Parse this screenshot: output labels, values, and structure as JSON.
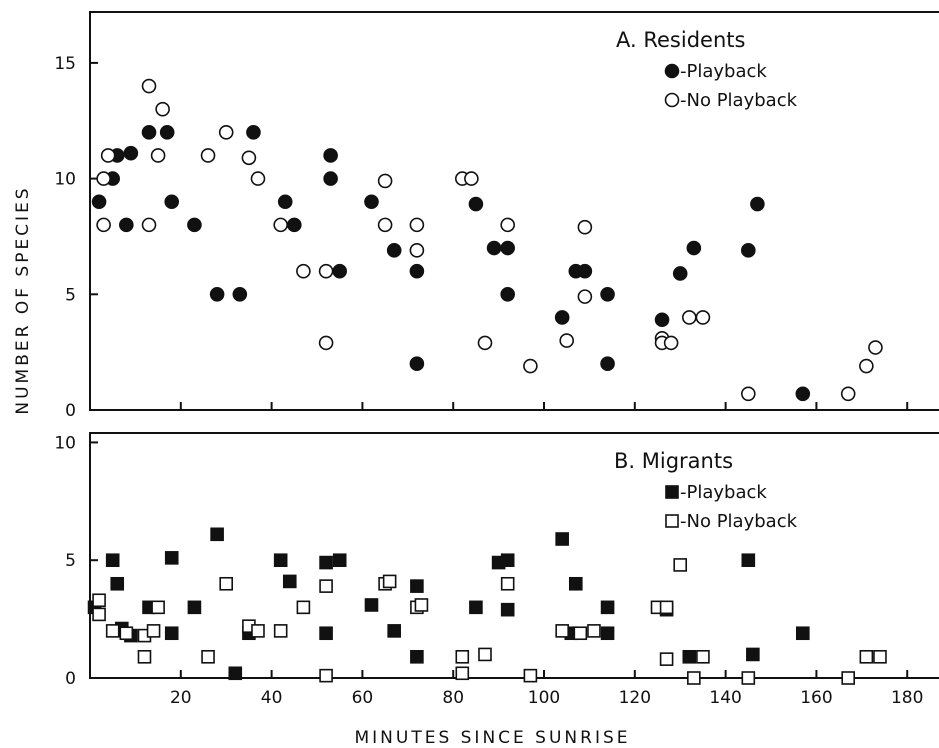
{
  "chart_data": {
    "type": "scatter",
    "xlabel": "MINUTES SINCE SUNRISE",
    "ylabel": "NUMBER OF SPECIES",
    "xlim": [
      0,
      187
    ],
    "x_ticks": [
      20,
      40,
      60,
      80,
      100,
      120,
      140,
      160,
      180
    ],
    "grid": false,
    "panels": [
      {
        "id": "residents",
        "title": "A. Residents",
        "ylim": [
          0,
          17.2
        ],
        "y_ticks": [
          0,
          5,
          10,
          15
        ],
        "legend_position": "top-right",
        "series": [
          {
            "name": "-Playback",
            "marker": "filled-circle",
            "points": [
              [
                2,
                9
              ],
              [
                5,
                10
              ],
              [
                6,
                11
              ],
              [
                8,
                8
              ],
              [
                9,
                11.1
              ],
              [
                13,
                12
              ],
              [
                17,
                12
              ],
              [
                18,
                9
              ],
              [
                23,
                8
              ],
              [
                28,
                5
              ],
              [
                33,
                5
              ],
              [
                36,
                12
              ],
              [
                43,
                9
              ],
              [
                45,
                8
              ],
              [
                53,
                11
              ],
              [
                53,
                10
              ],
              [
                55,
                6
              ],
              [
                62,
                9
              ],
              [
                67,
                6.9
              ],
              [
                72,
                6
              ],
              [
                72,
                2
              ],
              [
                85,
                8.9
              ],
              [
                89,
                7
              ],
              [
                92,
                7
              ],
              [
                92,
                5
              ],
              [
                104,
                4
              ],
              [
                107,
                6
              ],
              [
                109,
                6
              ],
              [
                114,
                5
              ],
              [
                114,
                2
              ],
              [
                126,
                3.9
              ],
              [
                130,
                5.9
              ],
              [
                133,
                7
              ],
              [
                145,
                6.9
              ],
              [
                147,
                8.9
              ],
              [
                157,
                0.7
              ]
            ]
          },
          {
            "name": "-No Playback",
            "marker": "open-circle",
            "points": [
              [
                3,
                10
              ],
              [
                3,
                8
              ],
              [
                4,
                11
              ],
              [
                13,
                14
              ],
              [
                13,
                8
              ],
              [
                15,
                11
              ],
              [
                16,
                13
              ],
              [
                26,
                11
              ],
              [
                30,
                12
              ],
              [
                35,
                10.9
              ],
              [
                37,
                10
              ],
              [
                42,
                8
              ],
              [
                47,
                6
              ],
              [
                52,
                6
              ],
              [
                52,
                2.9
              ],
              [
                65,
                8
              ],
              [
                65,
                9.9
              ],
              [
                72,
                6.9
              ],
              [
                72,
                8
              ],
              [
                82,
                10
              ],
              [
                84,
                10
              ],
              [
                87,
                2.9
              ],
              [
                92,
                8
              ],
              [
                97,
                1.9
              ],
              [
                105,
                3
              ],
              [
                109,
                7.9
              ],
              [
                109,
                4.9
              ],
              [
                126,
                3.1
              ],
              [
                126,
                2.9
              ],
              [
                128,
                2.9
              ],
              [
                132,
                4
              ],
              [
                135,
                4
              ],
              [
                145,
                0.7
              ],
              [
                167,
                0.7
              ],
              [
                171,
                1.9
              ],
              [
                173,
                2.7
              ]
            ]
          }
        ]
      },
      {
        "id": "migrants",
        "title": "B. Migrants",
        "ylim": [
          0,
          10.4
        ],
        "y_ticks": [
          0,
          5,
          10
        ],
        "legend_position": "top-right",
        "series": [
          {
            "name": "-Playback",
            "marker": "filled-square",
            "points": [
              [
                1,
                3
              ],
              [
                5,
                5
              ],
              [
                6,
                4
              ],
              [
                7,
                2.1
              ],
              [
                9,
                1.8
              ],
              [
                13,
                3
              ],
              [
                18,
                5.1
              ],
              [
                18,
                1.9
              ],
              [
                23,
                3
              ],
              [
                28,
                6.1
              ],
              [
                32,
                0.2
              ],
              [
                35,
                1.9
              ],
              [
                42,
                5
              ],
              [
                44,
                4.1
              ],
              [
                52,
                4.9
              ],
              [
                52,
                1.9
              ],
              [
                55,
                5
              ],
              [
                62,
                3.1
              ],
              [
                67,
                2
              ],
              [
                72,
                3.9
              ],
              [
                72,
                0.9
              ],
              [
                85,
                3
              ],
              [
                90,
                4.9
              ],
              [
                92,
                5
              ],
              [
                92,
                2.9
              ],
              [
                104,
                5.9
              ],
              [
                106,
                1.9
              ],
              [
                107,
                4
              ],
              [
                114,
                3
              ],
              [
                114,
                1.9
              ],
              [
                127,
                2.9
              ],
              [
                132,
                0.9
              ],
              [
                145,
                5
              ],
              [
                146,
                1
              ],
              [
                157,
                1.9
              ]
            ]
          },
          {
            "name": "-No Playback",
            "marker": "open-square",
            "points": [
              [
                2,
                3.3
              ],
              [
                2,
                2.7
              ],
              [
                5,
                2
              ],
              [
                8,
                1.9
              ],
              [
                12,
                1.8
              ],
              [
                12,
                0.9
              ],
              [
                14,
                2
              ],
              [
                15,
                3
              ],
              [
                26,
                0.9
              ],
              [
                30,
                4
              ],
              [
                35,
                2.2
              ],
              [
                37,
                2
              ],
              [
                42,
                2
              ],
              [
                47,
                3
              ],
              [
                52,
                0.1
              ],
              [
                52,
                3.9
              ],
              [
                65,
                4
              ],
              [
                66,
                4.1
              ],
              [
                72,
                3
              ],
              [
                73,
                3.1
              ],
              [
                82,
                0.9
              ],
              [
                82,
                0.2
              ],
              [
                87,
                1
              ],
              [
                92,
                4
              ],
              [
                97,
                0.1
              ],
              [
                104,
                2
              ],
              [
                108,
                1.9
              ],
              [
                111,
                2
              ],
              [
                125,
                3
              ],
              [
                127,
                3
              ],
              [
                127,
                0.8
              ],
              [
                130,
                4.8
              ],
              [
                133,
                0
              ],
              [
                135,
                0.9
              ],
              [
                145,
                0
              ],
              [
                167,
                0
              ],
              [
                171,
                0.9
              ],
              [
                174,
                0.9
              ]
            ]
          }
        ]
      }
    ]
  }
}
